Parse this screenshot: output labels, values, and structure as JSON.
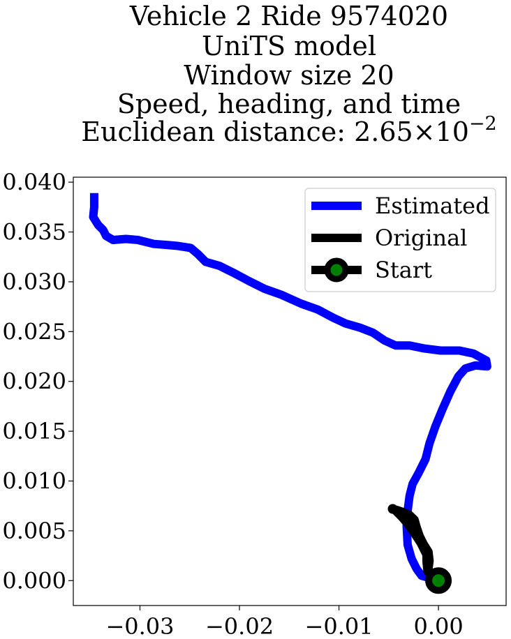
{
  "chart_data": {
    "type": "line",
    "title_lines": [
      "Vehicle 2 Ride 9574020",
      "UniTS model",
      "Window size 20",
      "Speed, heading, and time"
    ],
    "title_distance_prefix": "Euclidean distance: ",
    "title_distance_mantissa": "2.65",
    "title_distance_times": "×",
    "title_distance_base": "10",
    "title_distance_exponent": "−2",
    "xlabel": "",
    "ylabel": "",
    "xlim": [
      -0.0367,
      0.0068
    ],
    "ylim": [
      -0.0025,
      0.0405
    ],
    "x_ticks": [
      -0.03,
      -0.02,
      -0.01,
      0.0
    ],
    "x_tick_labels": [
      "−0.03",
      "−0.02",
      "−0.01",
      "0.00"
    ],
    "y_ticks": [
      0.0,
      0.005,
      0.01,
      0.015,
      0.02,
      0.025,
      0.03,
      0.035,
      0.04
    ],
    "y_tick_labels": [
      "0.000",
      "0.005",
      "0.010",
      "0.015",
      "0.020",
      "0.025",
      "0.030",
      "0.035",
      "0.040"
    ],
    "grid": false,
    "legend_position": "top-right",
    "series": [
      {
        "name": "Estimated",
        "color": "#0000ff",
        "points": [
          [
            0.0,
            0.0
          ],
          [
            -0.0017,
            0.0005
          ],
          [
            -0.0022,
            0.0012
          ],
          [
            -0.0027,
            0.0022
          ],
          [
            -0.0031,
            0.0036
          ],
          [
            -0.0032,
            0.0055
          ],
          [
            -0.0031,
            0.007
          ],
          [
            -0.0029,
            0.0085
          ],
          [
            -0.0026,
            0.0097
          ],
          [
            -0.002,
            0.0108
          ],
          [
            -0.0013,
            0.0122
          ],
          [
            -0.0009,
            0.0138
          ],
          [
            -0.0003,
            0.0155
          ],
          [
            0.0004,
            0.0172
          ],
          [
            0.0012,
            0.019
          ],
          [
            0.002,
            0.0205
          ],
          [
            0.0027,
            0.0213
          ],
          [
            0.0037,
            0.0216
          ],
          [
            0.0049,
            0.0215
          ],
          [
            0.0048,
            0.0221
          ],
          [
            0.0035,
            0.0228
          ],
          [
            0.0021,
            0.0231
          ],
          [
            0.0002,
            0.0231
          ],
          [
            -0.0014,
            0.0233
          ],
          [
            -0.0029,
            0.0236
          ],
          [
            -0.0043,
            0.0236
          ],
          [
            -0.0054,
            0.0241
          ],
          [
            -0.0066,
            0.0249
          ],
          [
            -0.0079,
            0.0254
          ],
          [
            -0.0093,
            0.0258
          ],
          [
            -0.0106,
            0.0264
          ],
          [
            -0.0121,
            0.0272
          ],
          [
            -0.0138,
            0.0278
          ],
          [
            -0.0158,
            0.0287
          ],
          [
            -0.0175,
            0.0293
          ],
          [
            -0.0191,
            0.0301
          ],
          [
            -0.0206,
            0.0309
          ],
          [
            -0.022,
            0.0316
          ],
          [
            -0.0234,
            0.032
          ],
          [
            -0.0242,
            0.0328
          ],
          [
            -0.0249,
            0.0334
          ],
          [
            -0.0262,
            0.0336
          ],
          [
            -0.0273,
            0.0337
          ],
          [
            -0.0286,
            0.0338
          ],
          [
            -0.0302,
            0.0342
          ],
          [
            -0.0314,
            0.0343
          ],
          [
            -0.0327,
            0.0342
          ],
          [
            -0.0334,
            0.0346
          ],
          [
            -0.0337,
            0.0352
          ],
          [
            -0.0342,
            0.0357
          ],
          [
            -0.0347,
            0.0365
          ],
          [
            -0.0346,
            0.0375
          ],
          [
            -0.0346,
            0.0389
          ]
        ]
      },
      {
        "name": "Original",
        "color": "#000000",
        "points": [
          [
            0.0,
            0.0
          ],
          [
            -0.0011,
            0.0009
          ],
          [
            -0.0012,
            0.0019
          ],
          [
            -0.0012,
            0.0026
          ],
          [
            -0.0014,
            0.003
          ],
          [
            -0.0018,
            0.0038
          ],
          [
            -0.0024,
            0.0047
          ],
          [
            -0.0031,
            0.0057
          ],
          [
            -0.0037,
            0.0064
          ],
          [
            -0.0043,
            0.007
          ],
          [
            -0.0046,
            0.0072
          ],
          [
            -0.0042,
            0.0071
          ],
          [
            -0.0036,
            0.0069
          ],
          [
            -0.0029,
            0.0066
          ],
          [
            -0.0024,
            0.0061
          ],
          [
            -0.0022,
            0.0054
          ],
          [
            -0.0019,
            0.0045
          ],
          [
            -0.0015,
            0.0037
          ],
          [
            -0.001,
            0.0029
          ],
          [
            -0.0009,
            0.002
          ],
          [
            -0.001,
            0.0012
          ],
          [
            -0.0008,
            0.0005
          ],
          [
            -0.0004,
            0.0001
          ],
          [
            0.0,
            0.0
          ]
        ]
      }
    ],
    "start": {
      "name": "Start",
      "x": 0.0,
      "y": 0.0,
      "marker_color": "#008000",
      "edge_color": "#000000"
    }
  }
}
